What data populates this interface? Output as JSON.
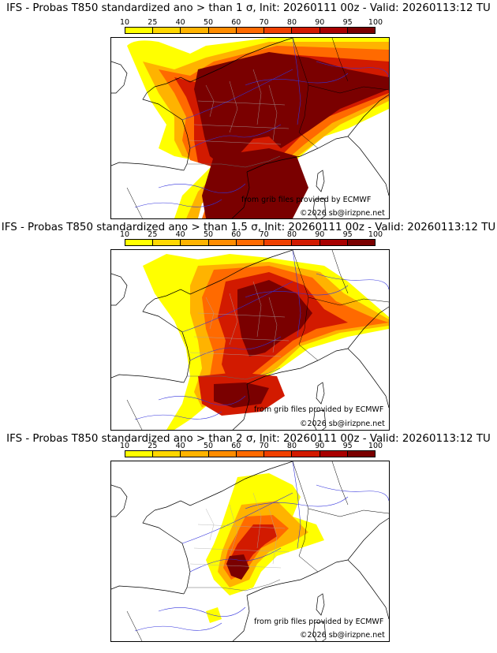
{
  "colorbar": {
    "ticks": [
      "10",
      "25",
      "40",
      "50",
      "60",
      "70",
      "80",
      "90",
      "95",
      "100"
    ],
    "colors": [
      "#ffff00",
      "#ffd700",
      "#ffb300",
      "#ff8c00",
      "#ff6a00",
      "#f04000",
      "#d21a00",
      "#a80000",
      "#7a0000"
    ]
  },
  "panels": [
    {
      "title": "IFS - Probas T850  standardized ano > than 1 σ, Init: 20260111 00z - Valid: 20260113:12 TU",
      "credit": "from grib files provided by ECMWF",
      "copyright": "©2026 sb@irizpne.net"
    },
    {
      "title": "IFS - Probas T850  standardized ano > than 1.5 σ, Init: 20260111 00z - Valid: 20260113:12 TU",
      "credit": "from grib files provided by ECMWF",
      "copyright": "©2026 sb@irizpne.net"
    },
    {
      "title": "IFS - Probas T850  standardized ano > than 2 σ, Init: 20260111 00z - Valid: 20260113:12 TU",
      "credit": "from grib files provided by ECMWF",
      "copyright": "©2026 sb@irizpne.net"
    }
  ]
}
